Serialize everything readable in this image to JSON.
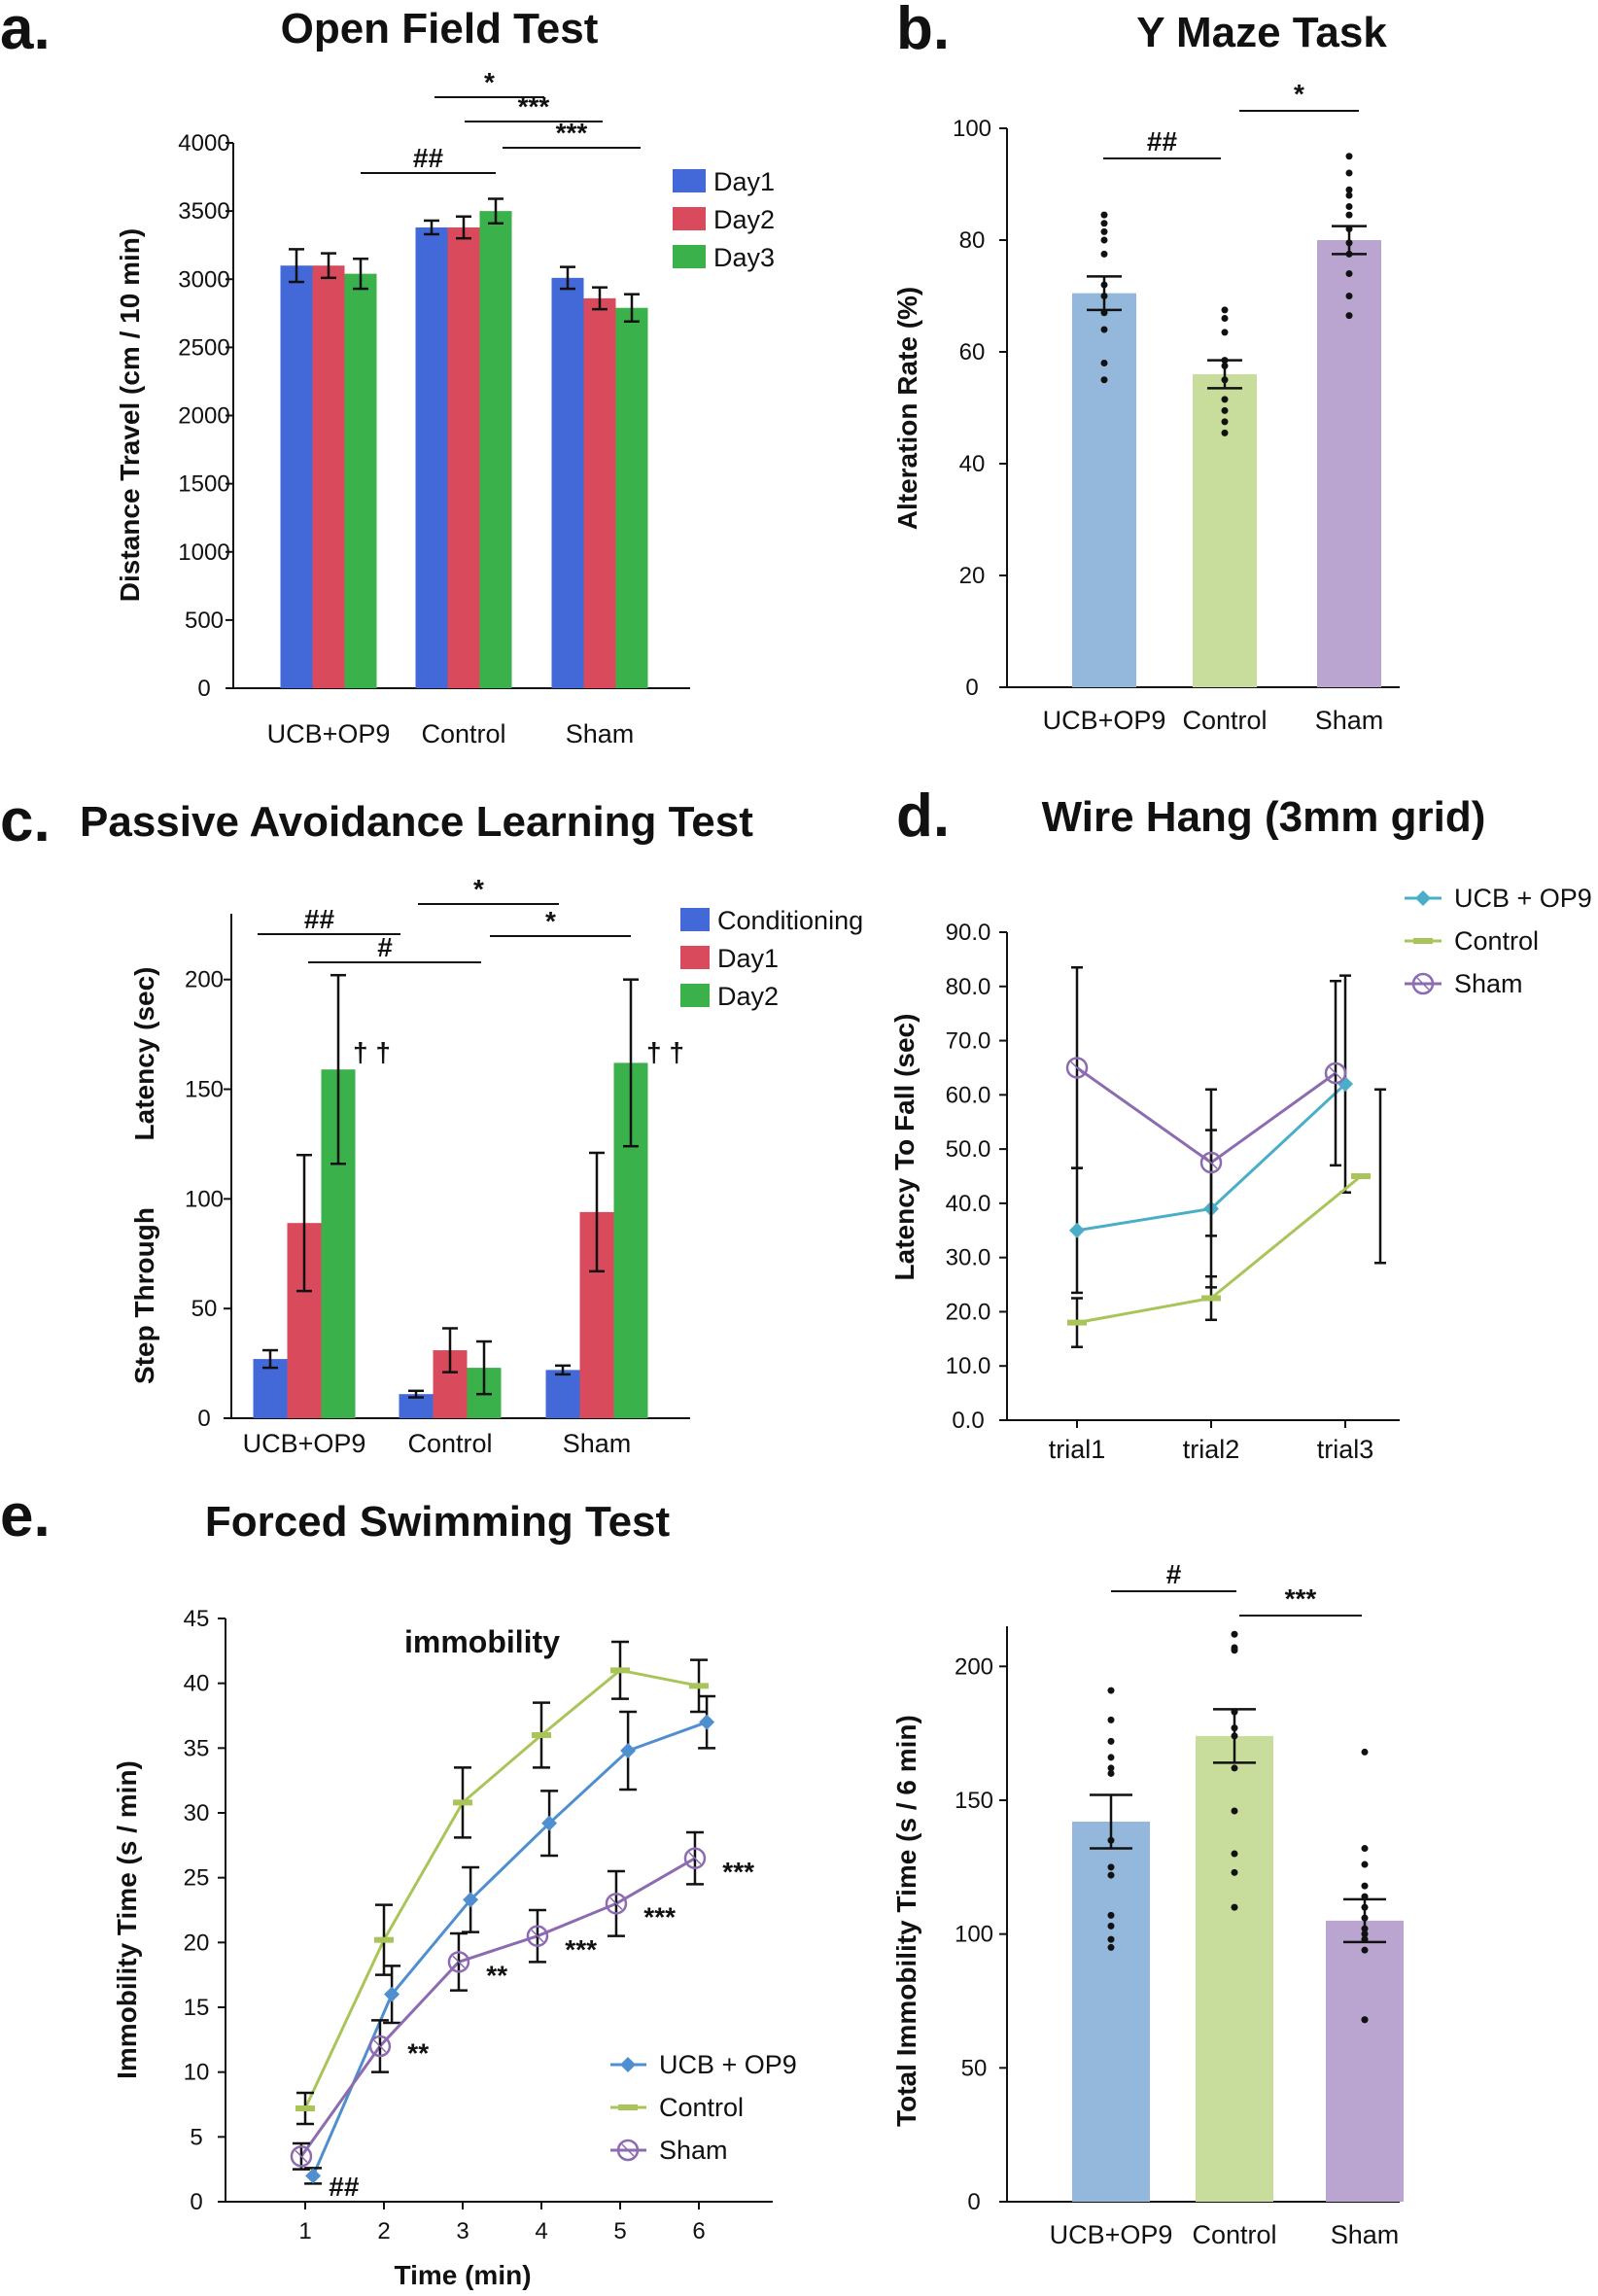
{
  "chart_data": [
    {
      "id": "a",
      "type": "bar",
      "panel_label": "a.",
      "title": "Open Field Test",
      "ylabel": "Distance Travel (cm / 10 min)",
      "xlabel": "",
      "ylim": [
        0,
        4000
      ],
      "yticks": [
        0,
        500,
        1000,
        1500,
        2000,
        2500,
        3000,
        3500,
        4000
      ],
      "categories": [
        "UCB+OP9",
        "Control",
        "Sham"
      ],
      "series": [
        {
          "name": "Day1",
          "color": "#4369d9",
          "values": [
            3100,
            3380,
            3010
          ],
          "errors": [
            120,
            50,
            80
          ]
        },
        {
          "name": "Day2",
          "color": "#d94a5c",
          "values": [
            3100,
            3380,
            2860
          ],
          "errors": [
            90,
            80,
            80
          ]
        },
        {
          "name": "Day3",
          "color": "#3ab14a",
          "values": [
            3040,
            3500,
            2790
          ],
          "errors": [
            110,
            90,
            100
          ]
        }
      ],
      "legend_position": "top-right",
      "significance": [
        {
          "label": "*"
        },
        {
          "label": "***"
        },
        {
          "label": "***"
        },
        {
          "label": "##"
        }
      ]
    },
    {
      "id": "b",
      "type": "bar",
      "panel_label": "b.",
      "title": "Y Maze Task",
      "ylabel": "Alteration Rate (%)",
      "xlabel": "",
      "ylim": [
        0,
        100
      ],
      "yticks": [
        0,
        20,
        40,
        60,
        80,
        100
      ],
      "categories": [
        "UCB+OP9",
        "Control",
        "Sham"
      ],
      "colors": [
        "#94b8dc",
        "#c8dd9c",
        "#b9a5cf"
      ],
      "values": [
        70.5,
        56,
        80
      ],
      "errors": [
        3,
        2.5,
        2.5
      ],
      "points": [
        [
          84.5,
          83,
          81.5,
          80,
          77.5,
          72,
          70,
          67,
          64,
          58,
          55
        ],
        [
          67.5,
          66,
          63.5,
          58.5,
          57.5,
          55,
          51.5,
          49.5,
          47.5,
          45.5
        ],
        [
          95,
          92,
          89,
          88,
          86,
          84.5,
          82,
          79.5,
          77.5,
          74,
          70,
          66.5
        ]
      ],
      "significance": [
        {
          "label": "##"
        },
        {
          "label": "*"
        }
      ]
    },
    {
      "id": "c",
      "type": "bar",
      "panel_label": "c.",
      "title": "Passive Avoidance Learning Test",
      "ylabel_lines": [
        "Step Through",
        "Latency (sec)"
      ],
      "xlabel": "",
      "ylim": [
        0,
        230
      ],
      "yticks": [
        0,
        50,
        100,
        150,
        200
      ],
      "categories": [
        "UCB+OP9",
        "Control",
        "Sham"
      ],
      "series": [
        {
          "name": "Conditioning",
          "color": "#4369d9",
          "values": [
            27,
            11,
            22
          ],
          "errors": [
            4,
            1.5,
            2
          ]
        },
        {
          "name": "Day1",
          "color": "#d94a5c",
          "values": [
            89,
            31,
            94
          ],
          "errors": [
            31,
            10,
            27
          ]
        },
        {
          "name": "Day2",
          "color": "#3ab14a",
          "values": [
            159,
            23,
            162
          ],
          "errors": [
            43,
            12,
            38
          ]
        }
      ],
      "legend_position": "top-right",
      "daggers": "† †",
      "significance": [
        {
          "label": "##"
        },
        {
          "label": "#"
        },
        {
          "label": "*"
        },
        {
          "label": "*"
        }
      ]
    },
    {
      "id": "d",
      "type": "line",
      "panel_label": "d.",
      "title": "Wire Hang (3mm grid)",
      "ylabel": "Latency To Fall (sec)",
      "xlabel": "",
      "ylim": [
        0,
        90
      ],
      "yticks": [
        "0.0",
        "10.0",
        "20.0",
        "30.0",
        "40.0",
        "50.0",
        "60.0",
        "70.0",
        "80.0",
        "90.0"
      ],
      "categories": [
        "trial1",
        "trial2",
        "trial3"
      ],
      "series": [
        {
          "name": "UCB + OP9",
          "color": "#4aaec8",
          "marker": "diamond",
          "values": [
            35,
            39,
            62
          ],
          "errors": [
            11.5,
            14.5,
            20
          ]
        },
        {
          "name": "Control",
          "color": "#a9c55a",
          "marker": "dash",
          "values": [
            18,
            22.5,
            45
          ],
          "errors": [
            4.5,
            4,
            16
          ]
        },
        {
          "name": "Sham",
          "color": "#8c6bb1",
          "marker": "circle",
          "values": [
            65,
            47.5,
            64
          ],
          "errors": [
            18.5,
            13.5,
            17
          ]
        }
      ],
      "legend_position": "top-right"
    },
    {
      "id": "e1",
      "type": "line",
      "panel_label": "e.",
      "title": "Forced Swimming Test",
      "subtitle": "immobility",
      "ylabel": "Immobility Time (s / min)",
      "xlabel": "Time (min)",
      "ylim": [
        0,
        45
      ],
      "xlim": [
        0,
        7
      ],
      "yticks": [
        0,
        5,
        10,
        15,
        20,
        25,
        30,
        35,
        40,
        45
      ],
      "xticks": [
        1,
        2,
        3,
        4,
        5,
        6
      ],
      "series": [
        {
          "name": "UCB + OP9",
          "color": "#4f8fcf",
          "marker": "diamond",
          "x": [
            1.1,
            2.1,
            3.1,
            4.1,
            5.1,
            6.1
          ],
          "values": [
            2,
            16,
            23.3,
            29.2,
            34.8,
            37
          ],
          "errors": [
            0.6,
            2.2,
            2.5,
            2.5,
            3,
            2
          ]
        },
        {
          "name": "Control",
          "color": "#a9c55a",
          "marker": "dash",
          "x": [
            1.0,
            2.0,
            3.0,
            4.0,
            5.0,
            6.0
          ],
          "values": [
            7.2,
            20.2,
            30.8,
            36,
            41,
            39.8
          ],
          "errors": [
            1.2,
            2.7,
            2.7,
            2.5,
            2.2,
            2
          ]
        },
        {
          "name": "Sham",
          "color": "#8c6bb1",
          "marker": "circle",
          "x": [
            0.95,
            1.95,
            2.95,
            3.95,
            4.95,
            5.95
          ],
          "values": [
            3.5,
            12,
            18.5,
            20.5,
            23,
            26.5
          ],
          "errors": [
            1,
            2,
            2.2,
            2,
            2.5,
            2
          ]
        }
      ],
      "legend_position": "bottom-right",
      "annotations": [
        {
          "label": "##",
          "x": 1.3,
          "y": 1.2
        },
        {
          "label": "**",
          "x": 2.3,
          "y": 11.5
        },
        {
          "label": "**",
          "x": 3.3,
          "y": 17.5
        },
        {
          "label": "***",
          "x": 4.3,
          "y": 19.5
        },
        {
          "label": "***",
          "x": 5.3,
          "y": 22
        },
        {
          "label": "***",
          "x": 6.3,
          "y": 25.5
        }
      ]
    },
    {
      "id": "e2",
      "type": "bar",
      "title": "",
      "ylabel": "Total Immobility Time (s / 6 min)",
      "xlabel": "",
      "ylim": [
        0,
        215
      ],
      "yticks": [
        0,
        50,
        100,
        150,
        200
      ],
      "categories": [
        "UCB+OP9",
        "Control",
        "Sham"
      ],
      "colors": [
        "#94b8dc",
        "#c8dd9c",
        "#b9a5cf"
      ],
      "values": [
        142,
        174,
        105
      ],
      "errors": [
        10,
        10,
        8
      ],
      "points": [
        [
          191,
          180,
          172,
          166,
          162,
          160,
          135,
          125,
          122,
          107,
          103,
          98,
          95
        ],
        [
          212,
          207,
          206,
          183,
          177,
          174,
          162,
          146,
          130,
          123,
          110
        ],
        [
          168,
          132,
          126,
          118,
          114,
          110,
          106,
          102,
          100,
          98,
          94,
          68,
          68
        ]
      ],
      "significance": [
        {
          "label": "#"
        },
        {
          "label": "***"
        }
      ]
    }
  ]
}
